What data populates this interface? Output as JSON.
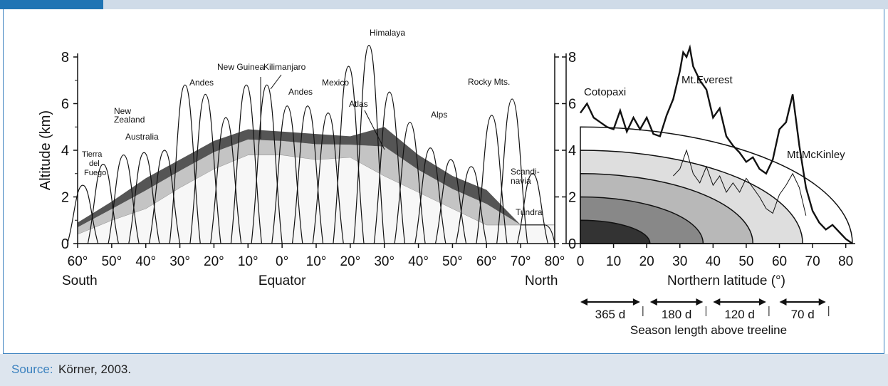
{
  "colors": {
    "accent": "#1f74b4",
    "frame": "#3c82bf",
    "source_bg": "#dde5ee",
    "topbar": "#cfdbe8",
    "band_dark": "#555555",
    "band_light": "#c4c4c4",
    "band_white": "#f7f7f7"
  },
  "source": {
    "label": "Source:",
    "text": "Körner, 2003."
  },
  "chart_data": [
    {
      "type": "area",
      "ylabel": "Altitude (km)",
      "ylim": [
        0,
        8
      ],
      "xlim": [
        -60,
        80
      ],
      "x_ticks": [
        "60°",
        "50°",
        "40°",
        "30°",
        "20°",
        "10°",
        "0°",
        "10°",
        "20°",
        "30°",
        "40°",
        "50°",
        "60°",
        "70°",
        "80°"
      ],
      "y_ticks": [
        "0",
        "2",
        "4",
        "6",
        "8"
      ],
      "x_region_labels": {
        "left": "South",
        "center": "Equator",
        "right": "North"
      },
      "treeline_band": {
        "x": [
          -60,
          -50,
          -40,
          -30,
          -20,
          -10,
          0,
          10,
          20,
          30,
          40,
          50,
          60,
          70,
          80
        ],
        "lower": [
          0.4,
          1.0,
          1.5,
          2.4,
          3.2,
          3.8,
          3.8,
          3.6,
          3.7,
          2.9,
          2.2,
          1.5,
          0.8,
          0.8,
          0.8
        ],
        "upper": [
          0.9,
          1.8,
          2.8,
          3.6,
          4.4,
          4.9,
          4.8,
          4.7,
          4.6,
          5.0,
          3.8,
          2.9,
          2.3,
          0.8,
          0.8
        ]
      },
      "summit_peaks_km": [
        2.5,
        3.4,
        3.8,
        3.9,
        4.0,
        6.8,
        6.4,
        5.4,
        6.8,
        6.8,
        5.9,
        5.9,
        5.6,
        7.6,
        8.5,
        6.5,
        5.2,
        4.1,
        3.6,
        3.3,
        5.5,
        6.2,
        3.0
      ],
      "annotations": [
        "Tierra del Fuego",
        "New Zealand",
        "Australia",
        "Andes",
        "New Guinea",
        "Kilimanjaro",
        "Andes",
        "Mexico",
        "Himalaya",
        "Atlas",
        "Alps",
        "Rocky Mts.",
        "Scandi-navia",
        "Tundra"
      ]
    },
    {
      "type": "line",
      "xlabel": "Northern latitude (°)",
      "xlim": [
        0,
        82
      ],
      "ylim": [
        0,
        8
      ],
      "x_ticks": [
        "0",
        "10",
        "20",
        "30",
        "40",
        "50",
        "60",
        "70",
        "80"
      ],
      "y_ticks": [
        "0",
        "2",
        "4",
        "6",
        "8"
      ],
      "series": [
        {
          "name": "",
          "x": [
            0,
            2,
            4,
            6,
            8,
            10,
            12,
            14,
            16,
            18,
            20,
            22,
            24,
            26,
            28,
            30,
            31,
            32,
            33,
            34,
            36,
            38,
            40,
            42,
            44,
            46,
            48,
            50,
            52,
            54,
            56,
            58,
            60,
            62,
            64,
            66,
            68,
            70,
            72,
            74,
            76,
            78,
            80,
            82
          ],
          "values": [
            5.6,
            6.0,
            5.4,
            5.2,
            5.0,
            4.9,
            5.7,
            4.8,
            5.4,
            4.9,
            5.4,
            4.7,
            4.6,
            5.5,
            6.2,
            7.4,
            8.2,
            8.0,
            8.4,
            7.6,
            7.0,
            6.6,
            5.4,
            5.8,
            4.6,
            4.2,
            3.9,
            3.5,
            3.7,
            3.2,
            3.0,
            3.6,
            4.9,
            5.2,
            6.4,
            4.2,
            2.4,
            1.4,
            0.9,
            0.6,
            0.8,
            0.5,
            0.2,
            0.0
          ]
        },
        {
          "name": "",
          "x": [
            28,
            30,
            32,
            34,
            36,
            38,
            40,
            42,
            44,
            46,
            48,
            50,
            52,
            54,
            56,
            58,
            60,
            62,
            64,
            66,
            68
          ],
          "values": [
            2.9,
            3.2,
            4.0,
            3.0,
            2.6,
            3.3,
            2.5,
            2.9,
            2.2,
            2.6,
            2.2,
            2.8,
            2.4,
            2.0,
            1.5,
            1.3,
            2.1,
            2.5,
            3.0,
            2.4,
            1.2
          ]
        }
      ],
      "season_curves_km": [
        1.0,
        2.0,
        3.0,
        4.0,
        5.0
      ],
      "season_curve_fills": [
        "#333333",
        "#888888",
        "#b8b8b8",
        "#dedede",
        "#ffffff"
      ],
      "annotations": [
        "Cotopaxi",
        "Mt.Everest",
        "Mt.McKinley"
      ],
      "season_lengths": [
        "365 d",
        "180 d",
        "120 d",
        "70 d"
      ],
      "season_title": "Season length above treeline"
    }
  ]
}
